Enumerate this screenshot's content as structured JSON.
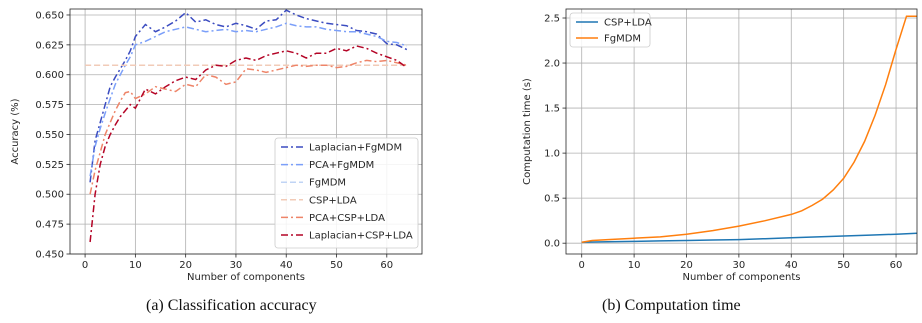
{
  "chart_data": [
    {
      "type": "line",
      "caption": "(a) Classification accuracy",
      "xlabel": "Number of components",
      "ylabel": "Accuracy (%)",
      "xlim": [
        -3,
        67
      ],
      "ylim": [
        0.45,
        0.655
      ],
      "xticks": [
        "0",
        "10",
        "20",
        "30",
        "40",
        "50",
        "60"
      ],
      "xtick_values": [
        0,
        10,
        20,
        30,
        40,
        50,
        60
      ],
      "yticks": [
        "0.450",
        "0.475",
        "0.500",
        "0.525",
        "0.550",
        "0.575",
        "0.600",
        "0.625",
        "0.650"
      ],
      "ytick_values": [
        0.45,
        0.475,
        0.5,
        0.525,
        0.55,
        0.575,
        0.6,
        0.625,
        0.65
      ],
      "grid": true,
      "legend": "lower-right",
      "series": [
        {
          "name": "Laplacian+FgMDM",
          "color": "#3b4cc0",
          "dash": "dashdot",
          "x": [
            1,
            2,
            3,
            4,
            5,
            6,
            7,
            8,
            9,
            10,
            12,
            14,
            16,
            18,
            20,
            22,
            24,
            26,
            28,
            30,
            32,
            34,
            36,
            38,
            40,
            42,
            44,
            46,
            48,
            50,
            52,
            54,
            56,
            58,
            60,
            62,
            64
          ],
          "y": [
            0.51,
            0.545,
            0.56,
            0.575,
            0.59,
            0.598,
            0.605,
            0.612,
            0.62,
            0.632,
            0.642,
            0.636,
            0.64,
            0.645,
            0.652,
            0.644,
            0.646,
            0.642,
            0.64,
            0.643,
            0.641,
            0.638,
            0.645,
            0.646,
            0.654,
            0.65,
            0.647,
            0.645,
            0.643,
            0.642,
            0.641,
            0.637,
            0.636,
            0.634,
            0.626,
            0.625,
            0.621
          ]
        },
        {
          "name": "PCA+FgMDM",
          "color": "#7b9ff9",
          "dash": "dashdot",
          "x": [
            1,
            2,
            3,
            4,
            5,
            6,
            7,
            8,
            9,
            10,
            12,
            14,
            16,
            18,
            20,
            22,
            24,
            26,
            28,
            30,
            32,
            34,
            36,
            38,
            40,
            42,
            44,
            46,
            48,
            50,
            52,
            54,
            56,
            58,
            60,
            62,
            64
          ],
          "y": [
            0.515,
            0.54,
            0.555,
            0.568,
            0.58,
            0.592,
            0.6,
            0.608,
            0.615,
            0.625,
            0.628,
            0.632,
            0.636,
            0.638,
            0.64,
            0.638,
            0.636,
            0.637,
            0.638,
            0.636,
            0.637,
            0.636,
            0.638,
            0.64,
            0.643,
            0.641,
            0.64,
            0.64,
            0.638,
            0.637,
            0.636,
            0.636,
            0.634,
            0.632,
            0.628,
            0.627,
            0.624
          ]
        },
        {
          "name": "FgMDM",
          "color": "#c0d4f5",
          "dash": "dashed",
          "x": [
            0,
            64
          ],
          "y": [
            0.608,
            0.608
          ]
        },
        {
          "name": "CSP+LDA",
          "color": "#f2cbb7",
          "dash": "dashed",
          "x": [
            0,
            64
          ],
          "y": [
            0.608,
            0.608
          ]
        },
        {
          "name": "PCA+CSP+LDA",
          "color": "#ee8468",
          "dash": "dashdot",
          "x": [
            1,
            2,
            3,
            4,
            5,
            6,
            7,
            8,
            9,
            10,
            12,
            14,
            16,
            18,
            20,
            22,
            24,
            26,
            28,
            30,
            32,
            34,
            36,
            38,
            40,
            42,
            44,
            46,
            48,
            50,
            52,
            54,
            56,
            58,
            60,
            62,
            64
          ],
          "y": [
            0.5,
            0.52,
            0.535,
            0.55,
            0.56,
            0.57,
            0.578,
            0.585,
            0.586,
            0.58,
            0.584,
            0.59,
            0.588,
            0.586,
            0.592,
            0.59,
            0.6,
            0.598,
            0.592,
            0.594,
            0.605,
            0.604,
            0.602,
            0.604,
            0.606,
            0.608,
            0.607,
            0.608,
            0.608,
            0.606,
            0.607,
            0.61,
            0.612,
            0.611,
            0.612,
            0.61,
            0.608
          ]
        },
        {
          "name": "Laplacian+CSP+LDA",
          "color": "#b40426",
          "dash": "dashdot",
          "x": [
            1,
            2,
            3,
            4,
            5,
            6,
            7,
            8,
            9,
            10,
            12,
            14,
            16,
            18,
            20,
            22,
            24,
            26,
            28,
            30,
            32,
            34,
            36,
            38,
            40,
            42,
            44,
            46,
            48,
            50,
            52,
            54,
            56,
            58,
            60,
            62,
            64
          ],
          "y": [
            0.46,
            0.5,
            0.525,
            0.54,
            0.55,
            0.558,
            0.565,
            0.57,
            0.575,
            0.572,
            0.588,
            0.584,
            0.59,
            0.595,
            0.598,
            0.596,
            0.604,
            0.608,
            0.607,
            0.612,
            0.614,
            0.612,
            0.616,
            0.618,
            0.62,
            0.618,
            0.614,
            0.618,
            0.618,
            0.622,
            0.62,
            0.624,
            0.622,
            0.618,
            0.615,
            0.612,
            0.606
          ]
        }
      ]
    },
    {
      "type": "line",
      "caption": "(b) Computation time",
      "xlabel": "Number of components",
      "ylabel": "Computation time (s)",
      "xlim": [
        -3,
        64
      ],
      "ylim": [
        -0.12,
        2.6
      ],
      "xticks": [
        "0",
        "10",
        "20",
        "30",
        "40",
        "50",
        "60"
      ],
      "xtick_values": [
        0,
        10,
        20,
        30,
        40,
        50,
        60
      ],
      "yticks": [
        "0.0",
        "0.5",
        "1.0",
        "1.5",
        "2.0",
        "2.5"
      ],
      "ytick_values": [
        0,
        0.5,
        1.0,
        1.5,
        2.0,
        2.5
      ],
      "grid": true,
      "legend": "top-left",
      "series": [
        {
          "name": "CSP+LDA",
          "color": "#1f77b4",
          "dash": "solid",
          "x": [
            0,
            5,
            10,
            15,
            20,
            25,
            30,
            35,
            40,
            45,
            50,
            55,
            60,
            64
          ],
          "y": [
            0.01,
            0.015,
            0.02,
            0.025,
            0.03,
            0.035,
            0.04,
            0.05,
            0.06,
            0.07,
            0.08,
            0.09,
            0.1,
            0.11
          ]
        },
        {
          "name": "FgMDM",
          "color": "#ff7f0e",
          "dash": "solid",
          "x": [
            0,
            2,
            5,
            10,
            15,
            20,
            25,
            30,
            35,
            40,
            42,
            44,
            46,
            48,
            50,
            52,
            54,
            56,
            58,
            60,
            62,
            64
          ],
          "y": [
            0.01,
            0.03,
            0.04,
            0.055,
            0.07,
            0.1,
            0.14,
            0.19,
            0.25,
            0.32,
            0.36,
            0.42,
            0.49,
            0.59,
            0.72,
            0.9,
            1.13,
            1.42,
            1.76,
            2.15,
            2.52,
            2.52
          ]
        }
      ]
    }
  ]
}
